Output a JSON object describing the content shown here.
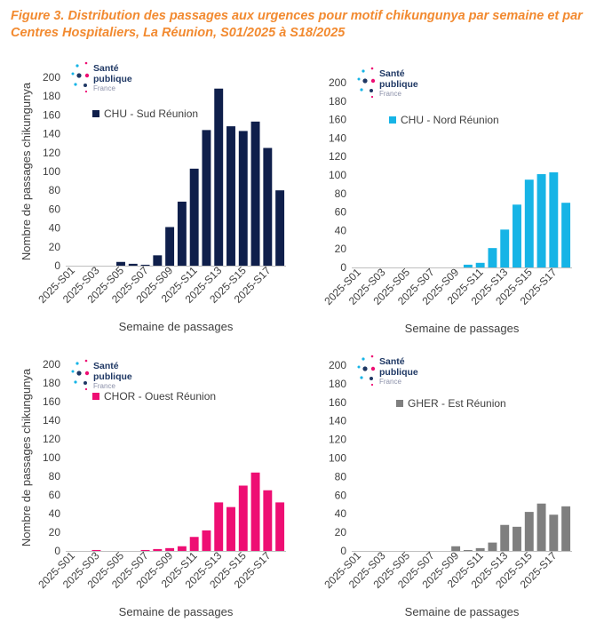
{
  "figure": {
    "title": "Figure 3. Distribution des passages aux urgences pour motif chikungunya par semaine et par Centres Hospitaliers, La Réunion, S01/2025 à S18/2025"
  },
  "logo": {
    "line1": "Santé",
    "line2": "publique",
    "line3": "France"
  },
  "colors": {
    "title": "#f28a30",
    "axis_text": "#404040"
  },
  "chart_data": [
    {
      "type": "bar",
      "categories": [
        "2025-S01",
        "2025-S02",
        "2025-S03",
        "2025-S04",
        "2025-S05",
        "2025-S06",
        "2025-S07",
        "2025-S08",
        "2025-S09",
        "2025-S10",
        "2025-S11",
        "2025-S12",
        "2025-S13",
        "2025-S14",
        "2025-S15",
        "2025-S16",
        "2025-S17",
        "2025-S18"
      ],
      "tick_labels": [
        "2025-S01",
        "2025-S03",
        "2025-S05",
        "2025-S07",
        "2025-S09",
        "2025-S11",
        "2025-S13",
        "2025-S15",
        "2025-S17"
      ],
      "series": [
        {
          "name": "CHU - Sud Réunion",
          "color": "#0f1f4b",
          "values": [
            0,
            0,
            0,
            0,
            4,
            2,
            1,
            11,
            41,
            68,
            103,
            144,
            188,
            148,
            143,
            153,
            125,
            80
          ]
        }
      ],
      "ylim": [
        0,
        200
      ],
      "yticks": [
        0,
        20,
        40,
        60,
        80,
        100,
        120,
        140,
        160,
        180,
        200
      ],
      "xlabel": "Semaine de passages",
      "ylabel": "Nombre de passages chikungunya"
    },
    {
      "type": "bar",
      "categories": [
        "2025-S01",
        "2025-S02",
        "2025-S03",
        "2025-S04",
        "2025-S05",
        "2025-S06",
        "2025-S07",
        "2025-S08",
        "2025-S09",
        "2025-S10",
        "2025-S11",
        "2025-S12",
        "2025-S13",
        "2025-S14",
        "2025-S15",
        "2025-S16",
        "2025-S17",
        "2025-S18"
      ],
      "tick_labels": [
        "2025-S01",
        "2025-S03",
        "2025-S05",
        "2025-S07",
        "2025-S09",
        "2025-S11",
        "2025-S13",
        "2025-S15",
        "2025-S17"
      ],
      "series": [
        {
          "name": "CHU - Nord Réunion",
          "color": "#16b4e6",
          "values": [
            0,
            0,
            0,
            0,
            0,
            0,
            0,
            0,
            0,
            3,
            5,
            21,
            41,
            68,
            95,
            101,
            103,
            70
          ]
        }
      ],
      "ylim": [
        0,
        200
      ],
      "yticks": [
        0,
        20,
        40,
        60,
        80,
        100,
        120,
        140,
        160,
        180,
        200
      ],
      "xlabel": "Semaine de passages",
      "ylabel": ""
    },
    {
      "type": "bar",
      "categories": [
        "2025-S01",
        "2025-S02",
        "2025-S03",
        "2025-S04",
        "2025-S05",
        "2025-S06",
        "2025-S07",
        "2025-S08",
        "2025-S09",
        "2025-S10",
        "2025-S11",
        "2025-S12",
        "2025-S13",
        "2025-S14",
        "2025-S15",
        "2025-S16",
        "2025-S17",
        "2025-S18"
      ],
      "tick_labels": [
        "2025-S01",
        "2025-S03",
        "2025-S05",
        "2025-S07",
        "2025-S09",
        "2025-S11",
        "2025-S13",
        "2025-S15",
        "2025-S17"
      ],
      "series": [
        {
          "name": "CHOR - Ouest Réunion",
          "color": "#ee0e73",
          "values": [
            0,
            0,
            1,
            0,
            0,
            0,
            1,
            2,
            3,
            5,
            15,
            22,
            52,
            47,
            70,
            84,
            65,
            52
          ]
        }
      ],
      "ylim": [
        0,
        200
      ],
      "yticks": [
        0,
        20,
        40,
        60,
        80,
        100,
        120,
        140,
        160,
        180,
        200
      ],
      "xlabel": "Semaine de passages",
      "ylabel": "Nombre de passages chikungunya"
    },
    {
      "type": "bar",
      "categories": [
        "2025-S01",
        "2025-S02",
        "2025-S03",
        "2025-S04",
        "2025-S05",
        "2025-S06",
        "2025-S07",
        "2025-S08",
        "2025-S09",
        "2025-S10",
        "2025-S11",
        "2025-S12",
        "2025-S13",
        "2025-S14",
        "2025-S15",
        "2025-S16",
        "2025-S17",
        "2025-S18"
      ],
      "tick_labels": [
        "2025-S01",
        "2025-S03",
        "2025-S05",
        "2025-S07",
        "2025-S09",
        "2025-S11",
        "2025-S13",
        "2025-S15",
        "2025-S17"
      ],
      "series": [
        {
          "name": "GHER - Est Réunion",
          "color": "#7f7f7f",
          "values": [
            0,
            0,
            0,
            0,
            0,
            0,
            0,
            0,
            5,
            1,
            3,
            9,
            28,
            26,
            42,
            51,
            39,
            48
          ]
        }
      ],
      "ylim": [
        0,
        200
      ],
      "yticks": [
        0,
        20,
        40,
        60,
        80,
        100,
        120,
        140,
        160,
        180,
        200
      ],
      "xlabel": "Semaine de passages",
      "ylabel": ""
    }
  ]
}
